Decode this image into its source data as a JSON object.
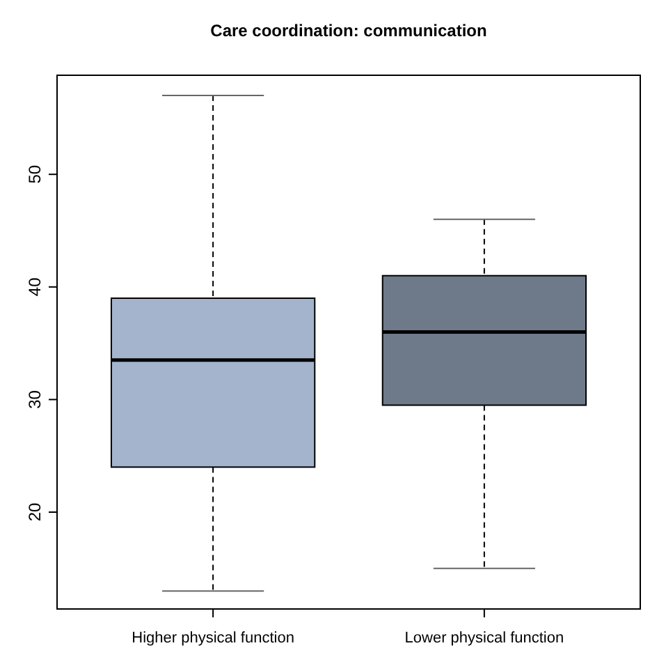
{
  "chart_data": {
    "type": "box",
    "title": "Care coordination: communication",
    "categories": [
      "Higher physical function",
      "Lower physical function"
    ],
    "boxes": [
      {
        "low": 13,
        "q1": 24,
        "median": 33.5,
        "q3": 39,
        "high": 57
      },
      {
        "low": 15,
        "q1": 29.5,
        "median": 36,
        "q3": 41,
        "high": 46
      }
    ],
    "colors": [
      "#a3b4cc",
      "#6e7a8a"
    ],
    "ylim": [
      11.4,
      58.8
    ],
    "yticks": [
      20,
      30,
      40,
      50
    ],
    "grid": false
  }
}
